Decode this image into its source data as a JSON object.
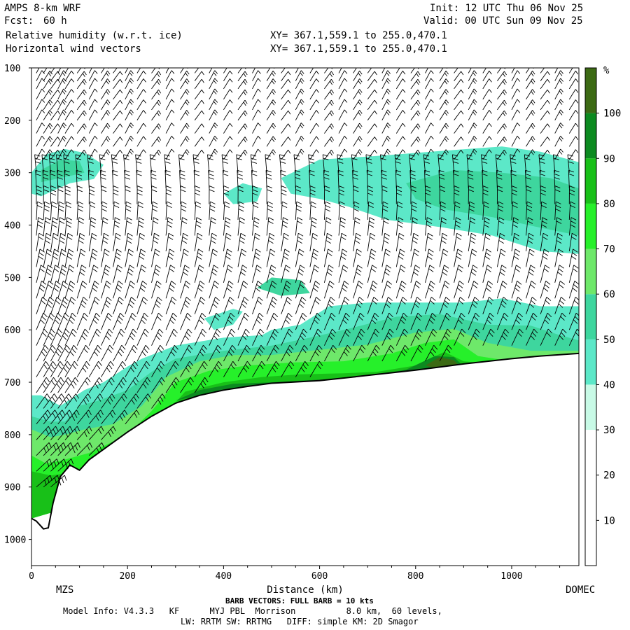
{
  "header": {
    "model": "AMPS 8-km WRF",
    "fcst_label": "Fcst:",
    "fcst_value": "60 h",
    "field1": "Relative humidity (w.r.t. ice)",
    "field2": "Horizontal wind vectors",
    "init": "Init: 12 UTC Thu 06 Nov 25",
    "valid": "Valid: 00 UTC Sun 09 Nov 25",
    "xy1": "XY= 367.1,559.1 to 255.0,470.1",
    "xy2": "XY= 367.1,559.1 to 255.0,470.1"
  },
  "footer": {
    "barb_note": "BARB VECTORS: FULL BARB = 10 kts",
    "model_info": "Model Info: V4.3.3   KF      MYJ PBL  Morrison          8.0 km,  60 levels,",
    "physics": "LW: RRTM SW: RRTMG   DIFF: simple KM: 2D Smagor"
  },
  "chart_data": {
    "type": "heatmap",
    "title": "Relative humidity (w.r.t. ice)",
    "xlabel": "Distance (km)",
    "ylabel": "",
    "x_range": [
      0,
      1140
    ],
    "y_range": [
      100,
      1050
    ],
    "y_inverted": true,
    "x_ticks": [
      0,
      200,
      400,
      600,
      800,
      1000
    ],
    "y_ticks": [
      100,
      200,
      300,
      400,
      500,
      600,
      700,
      800,
      900,
      1000
    ],
    "endpoints": {
      "left": "MZS",
      "right": "DOMEC"
    },
    "colorbar": {
      "unit": "%",
      "levels": [
        10,
        20,
        30,
        40,
        50,
        60,
        70,
        80,
        90,
        100
      ],
      "colors": [
        "#ffffff",
        "#ffffff",
        "#ffffff",
        "#c8fae6",
        "#5ce8c8",
        "#3ed69e",
        "#6ee86a",
        "#26f02a",
        "#18c018",
        "#0c8a20",
        "#3c6a14"
      ]
    },
    "terrain_surface": [
      {
        "x": 0,
        "p": 960
      },
      {
        "x": 10,
        "p": 965
      },
      {
        "x": 25,
        "p": 980
      },
      {
        "x": 35,
        "p": 978
      },
      {
        "x": 45,
        "p": 930
      },
      {
        "x": 60,
        "p": 880
      },
      {
        "x": 80,
        "p": 858
      },
      {
        "x": 100,
        "p": 868
      },
      {
        "x": 120,
        "p": 848
      },
      {
        "x": 150,
        "p": 828
      },
      {
        "x": 200,
        "p": 795
      },
      {
        "x": 250,
        "p": 765
      },
      {
        "x": 300,
        "p": 740
      },
      {
        "x": 350,
        "p": 725
      },
      {
        "x": 400,
        "p": 715
      },
      {
        "x": 450,
        "p": 708
      },
      {
        "x": 500,
        "p": 702
      },
      {
        "x": 600,
        "p": 697
      },
      {
        "x": 700,
        "p": 687
      },
      {
        "x": 800,
        "p": 677
      },
      {
        "x": 900,
        "p": 665
      },
      {
        "x": 1000,
        "p": 655
      },
      {
        "x": 1060,
        "p": 650
      },
      {
        "x": 1140,
        "p": 645
      }
    ],
    "rh_regions": [
      {
        "rh": 40,
        "points": [
          [
            0,
            725
          ],
          [
            20,
            725
          ],
          [
            60,
            745
          ],
          [
            110,
            715
          ],
          [
            150,
            700
          ],
          [
            200,
            670
          ],
          [
            230,
            655
          ],
          [
            300,
            630
          ],
          [
            400,
            615
          ],
          [
            480,
            610
          ],
          [
            500,
            600
          ],
          [
            560,
            590
          ],
          [
            620,
            555
          ],
          [
            700,
            548
          ],
          [
            800,
            548
          ],
          [
            900,
            548
          ],
          [
            980,
            540
          ],
          [
            1060,
            555
          ],
          [
            1140,
            555
          ],
          [
            1140,
            650
          ],
          [
            0,
            960
          ]
        ]
      },
      {
        "rh": 40,
        "points": [
          [
            380,
            600
          ],
          [
            420,
            590
          ],
          [
            440,
            565
          ],
          [
            420,
            560
          ],
          [
            360,
            578
          ]
        ]
      },
      {
        "rh": 50,
        "points": [
          [
            0,
            765
          ],
          [
            40,
            775
          ],
          [
            70,
            775
          ],
          [
            100,
            745
          ],
          [
            140,
            735
          ],
          [
            200,
            715
          ],
          [
            250,
            680
          ],
          [
            300,
            655
          ],
          [
            400,
            640
          ],
          [
            500,
            630
          ],
          [
            580,
            615
          ],
          [
            660,
            598
          ],
          [
            760,
            575
          ],
          [
            850,
            570
          ],
          [
            950,
            590
          ],
          [
            1040,
            592
          ],
          [
            1100,
            610
          ],
          [
            1140,
            620
          ],
          [
            1140,
            650
          ],
          [
            0,
            960
          ]
        ]
      },
      {
        "rh": 50,
        "points": [
          [
            470,
            520
          ],
          [
            500,
            500
          ],
          [
            560,
            505
          ],
          [
            580,
            530
          ],
          [
            520,
            535
          ]
        ]
      },
      {
        "rh": 60,
        "points": [
          [
            0,
            790
          ],
          [
            40,
            805
          ],
          [
            70,
            800
          ],
          [
            110,
            790
          ],
          [
            170,
            780
          ],
          [
            230,
            745
          ],
          [
            280,
            690
          ],
          [
            350,
            660
          ],
          [
            420,
            648
          ],
          [
            500,
            648
          ],
          [
            600,
            638
          ],
          [
            700,
            628
          ],
          [
            800,
            605
          ],
          [
            880,
            598
          ],
          [
            950,
            625
          ],
          [
            1040,
            640
          ],
          [
            1140,
            640
          ],
          [
            1140,
            650
          ],
          [
            0,
            960
          ]
        ]
      },
      {
        "rh": 70,
        "points": [
          [
            0,
            840
          ],
          [
            30,
            855
          ],
          [
            60,
            850
          ],
          [
            120,
            835
          ],
          [
            200,
            800
          ],
          [
            250,
            755
          ],
          [
            300,
            700
          ],
          [
            370,
            678
          ],
          [
            450,
            668
          ],
          [
            550,
            662
          ],
          [
            650,
            660
          ],
          [
            750,
            645
          ],
          [
            820,
            625
          ],
          [
            880,
            618
          ],
          [
            930,
            650
          ],
          [
            1000,
            660
          ],
          [
            1140,
            655
          ],
          [
            1140,
            650
          ],
          [
            0,
            960
          ]
        ]
      },
      {
        "rh": 80,
        "points": [
          [
            0,
            870
          ],
          [
            40,
            878
          ],
          [
            100,
            870
          ],
          [
            200,
            830
          ],
          [
            270,
            770
          ],
          [
            320,
            718
          ],
          [
            400,
            700
          ],
          [
            480,
            690
          ],
          [
            560,
            685
          ],
          [
            650,
            683
          ],
          [
            720,
            680
          ],
          [
            800,
            668
          ],
          [
            860,
            642
          ],
          [
            900,
            660
          ],
          [
            960,
            665
          ],
          [
            1140,
            655
          ],
          [
            0,
            960
          ]
        ]
      },
      {
        "rh": 90,
        "points": [
          [
            300,
            735
          ],
          [
            350,
            715
          ],
          [
            420,
            703
          ],
          [
            500,
            700
          ],
          [
            600,
            695
          ],
          [
            700,
            688
          ],
          [
            780,
            676
          ],
          [
            840,
            650
          ],
          [
            880,
            652
          ],
          [
            900,
            670
          ],
          [
            860,
            680
          ],
          [
            760,
            690
          ],
          [
            600,
            700
          ],
          [
            420,
            712
          ]
        ]
      },
      {
        "rh": 100,
        "points": [
          [
            820,
            668
          ],
          [
            850,
            652
          ],
          [
            880,
            658
          ],
          [
            895,
            672
          ],
          [
            860,
            678
          ]
        ]
      },
      {
        "rh": 40,
        "points": [
          [
            0,
            300
          ],
          [
            30,
            265
          ],
          [
            70,
            255
          ],
          [
            110,
            262
          ],
          [
            150,
            285
          ],
          [
            130,
            312
          ],
          [
            80,
            320
          ],
          [
            20,
            345
          ],
          [
            0,
            340
          ]
        ]
      },
      {
        "rh": 50,
        "points": [
          [
            20,
            295
          ],
          [
            60,
            275
          ],
          [
            100,
            278
          ],
          [
            110,
            300
          ],
          [
            60,
            310
          ],
          [
            20,
            318
          ]
        ]
      },
      {
        "rh": 40,
        "points": [
          [
            520,
            310
          ],
          [
            600,
            275
          ],
          [
            720,
            268
          ],
          [
            860,
            258
          ],
          [
            980,
            250
          ],
          [
            1060,
            260
          ],
          [
            1140,
            280
          ],
          [
            1140,
            455
          ],
          [
            1060,
            450
          ],
          [
            960,
            420
          ],
          [
            860,
            405
          ],
          [
            740,
            390
          ],
          [
            660,
            365
          ],
          [
            600,
            350
          ],
          [
            540,
            340
          ]
        ]
      },
      {
        "rh": 50,
        "points": [
          [
            780,
            320
          ],
          [
            880,
            295
          ],
          [
            980,
            300
          ],
          [
            1080,
            310
          ],
          [
            1140,
            330
          ],
          [
            1140,
            420
          ],
          [
            1060,
            405
          ],
          [
            960,
            385
          ],
          [
            860,
            370
          ],
          [
            800,
            350
          ]
        ]
      },
      {
        "rh": 40,
        "points": [
          [
            400,
            340
          ],
          [
            440,
            320
          ],
          [
            480,
            330
          ],
          [
            470,
            355
          ],
          [
            420,
            360
          ]
        ]
      }
    ],
    "wind_barbs": {
      "full_barb_kts": 10,
      "columns_x": [
        10,
        25,
        40,
        55,
        70,
        95,
        120,
        145,
        170,
        195,
        220,
        250,
        280,
        310,
        340,
        370,
        400,
        430,
        460,
        490,
        520,
        550,
        580,
        610,
        640,
        670,
        700,
        730,
        760,
        790,
        820,
        850,
        880,
        910,
        940,
        970,
        1000,
        1030,
        1060,
        1090,
        1120
      ],
      "levels_p": [
        110,
        125,
        140,
        160,
        180,
        200,
        225,
        250,
        275,
        300,
        330,
        360,
        390,
        420,
        450,
        480,
        510,
        540,
        570,
        600,
        630,
        660,
        690,
        720,
        750,
        780,
        810,
        840,
        870,
        900
      ]
    }
  }
}
